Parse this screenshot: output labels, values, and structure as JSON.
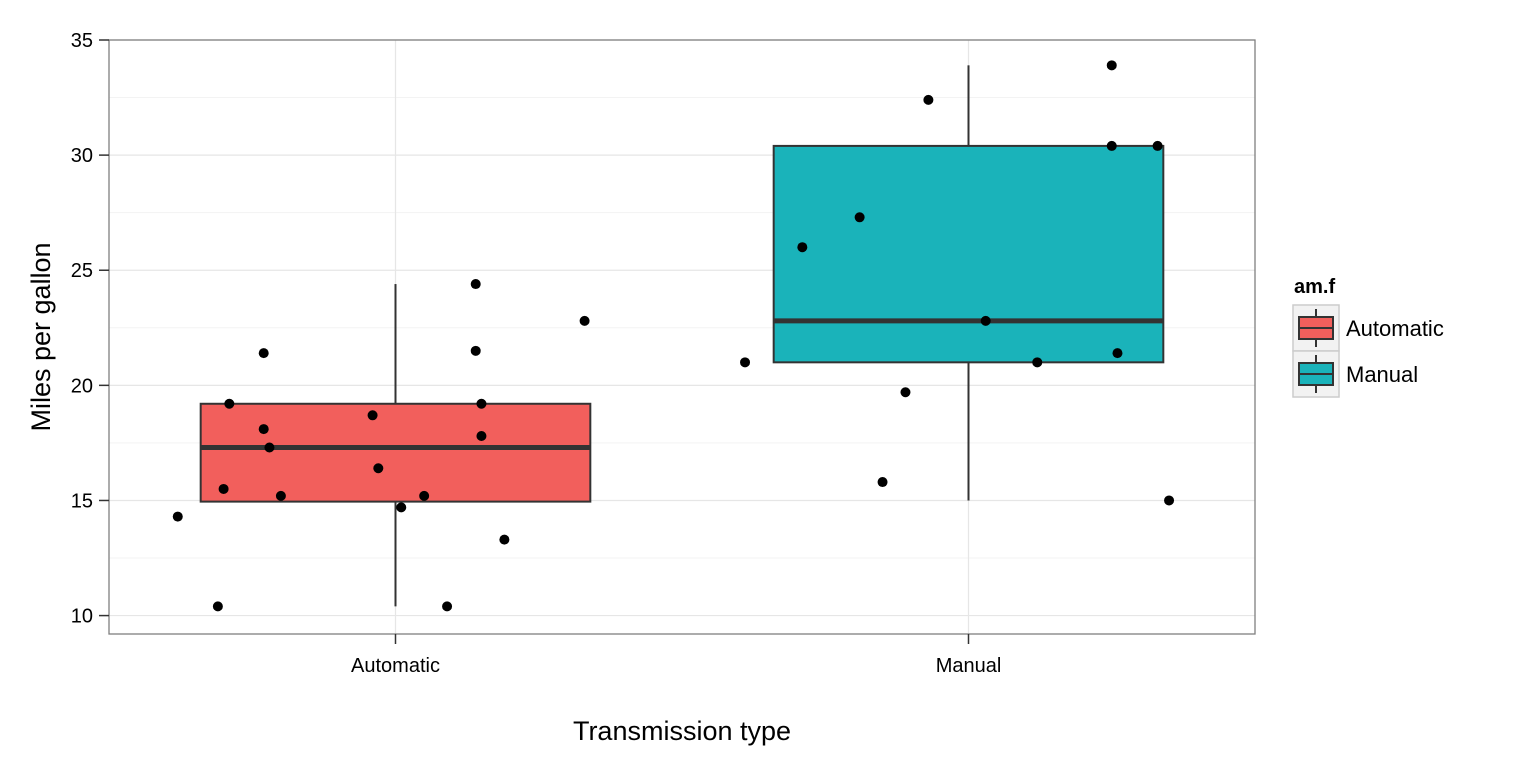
{
  "chart_data": {
    "type": "boxplot",
    "xlabel": "Transmission type",
    "ylabel": "Miles per gallon",
    "categories": [
      "Automatic",
      "Manual"
    ],
    "ylim": [
      9.2,
      35
    ],
    "yticks": [
      10,
      15,
      20,
      25,
      30,
      35
    ],
    "ytick_labels": [
      "10",
      "15",
      "20",
      "25",
      "30",
      "35"
    ],
    "grid": true,
    "legend": {
      "title": "am.f",
      "placement": "right",
      "entries": [
        "Automatic",
        "Manual"
      ]
    },
    "colors": {
      "Automatic": "#F25F5C",
      "Manual": "#1AB3BA",
      "outline": "#333333",
      "points": "#000000",
      "panel_border": "#7f7f7f",
      "grid": "#ebebeb"
    },
    "boxes": [
      {
        "category": "Automatic",
        "whisker_low": 10.4,
        "q1": 14.95,
        "median": 17.3,
        "q3": 19.2,
        "whisker_high": 24.4
      },
      {
        "category": "Manual",
        "whisker_low": 15.0,
        "q1": 21.0,
        "median": 22.8,
        "q3": 30.4,
        "whisker_high": 33.9
      }
    ],
    "points": [
      {
        "category": "Automatic",
        "jitter": -0.38,
        "y": 14.3
      },
      {
        "category": "Automatic",
        "jitter": -0.31,
        "y": 10.4
      },
      {
        "category": "Automatic",
        "jitter": -0.3,
        "y": 15.5
      },
      {
        "category": "Automatic",
        "jitter": -0.29,
        "y": 19.2
      },
      {
        "category": "Automatic",
        "jitter": -0.23,
        "y": 21.4
      },
      {
        "category": "Automatic",
        "jitter": -0.23,
        "y": 18.1
      },
      {
        "category": "Automatic",
        "jitter": -0.22,
        "y": 17.3
      },
      {
        "category": "Automatic",
        "jitter": -0.2,
        "y": 15.2
      },
      {
        "category": "Automatic",
        "jitter": -0.04,
        "y": 18.7
      },
      {
        "category": "Automatic",
        "jitter": -0.03,
        "y": 16.4
      },
      {
        "category": "Automatic",
        "jitter": 0.01,
        "y": 14.7
      },
      {
        "category": "Automatic",
        "jitter": 0.05,
        "y": 15.2
      },
      {
        "category": "Automatic",
        "jitter": 0.09,
        "y": 10.4
      },
      {
        "category": "Automatic",
        "jitter": 0.14,
        "y": 24.4
      },
      {
        "category": "Automatic",
        "jitter": 0.14,
        "y": 21.5
      },
      {
        "category": "Automatic",
        "jitter": 0.15,
        "y": 17.8
      },
      {
        "category": "Automatic",
        "jitter": 0.15,
        "y": 19.2
      },
      {
        "category": "Automatic",
        "jitter": 0.19,
        "y": 13.3
      },
      {
        "category": "Automatic",
        "jitter": 0.33,
        "y": 22.8
      },
      {
        "category": "Manual",
        "jitter": -0.39,
        "y": 21.0
      },
      {
        "category": "Manual",
        "jitter": -0.29,
        "y": 26.0
      },
      {
        "category": "Manual",
        "jitter": -0.19,
        "y": 27.3
      },
      {
        "category": "Manual",
        "jitter": -0.15,
        "y": 15.8
      },
      {
        "category": "Manual",
        "jitter": -0.11,
        "y": 19.7
      },
      {
        "category": "Manual",
        "jitter": -0.07,
        "y": 32.4
      },
      {
        "category": "Manual",
        "jitter": 0.03,
        "y": 22.8
      },
      {
        "category": "Manual",
        "jitter": 0.12,
        "y": 21.0
      },
      {
        "category": "Manual",
        "jitter": 0.25,
        "y": 33.9
      },
      {
        "category": "Manual",
        "jitter": 0.25,
        "y": 30.4
      },
      {
        "category": "Manual",
        "jitter": 0.26,
        "y": 21.4
      },
      {
        "category": "Manual",
        "jitter": 0.33,
        "y": 30.4
      },
      {
        "category": "Manual",
        "jitter": 0.35,
        "y": 15.0
      }
    ]
  }
}
